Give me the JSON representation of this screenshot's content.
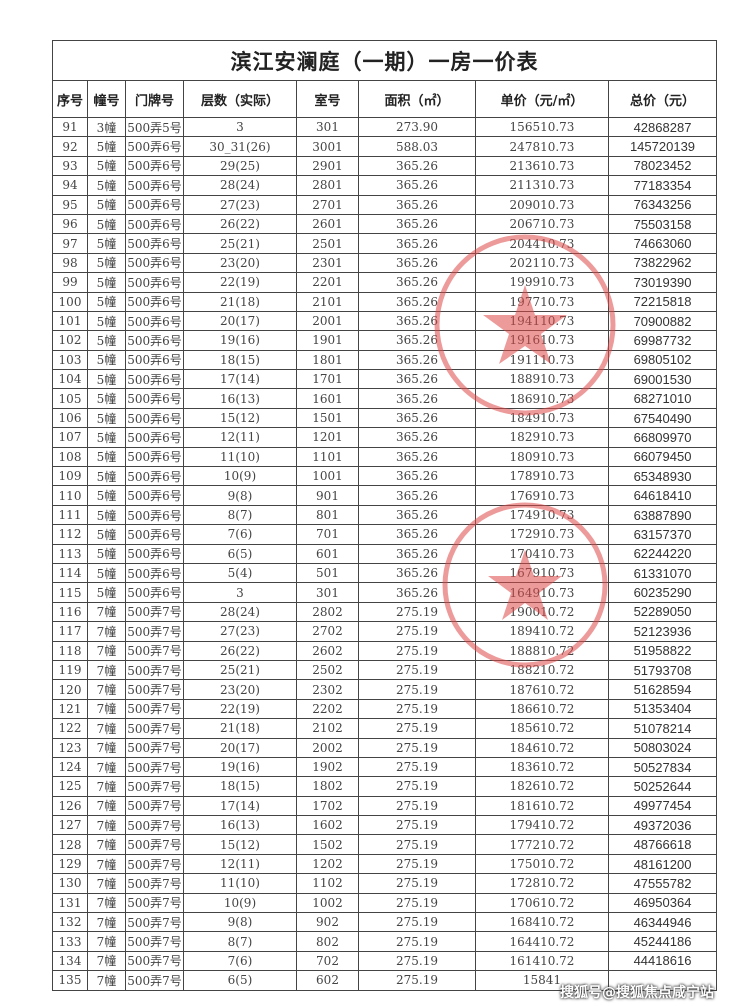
{
  "title": "滨江安澜庭（一期）一房一价表",
  "headers": [
    "序号",
    "幢号",
    "门牌号",
    "层数（实际）",
    "室号",
    "面积（㎡）",
    "单价（元/㎡）",
    "总价（元）"
  ],
  "rows": [
    [
      "91",
      "3幢",
      "500弄5号",
      "3",
      "301",
      "273.90",
      "156510.73",
      "42868287"
    ],
    [
      "92",
      "5幢",
      "500弄6号",
      "30_31(26)",
      "3001",
      "588.03",
      "247810.73",
      "145720139"
    ],
    [
      "93",
      "5幢",
      "500弄6号",
      "29(25)",
      "2901",
      "365.26",
      "213610.73",
      "78023452"
    ],
    [
      "94",
      "5幢",
      "500弄6号",
      "28(24)",
      "2801",
      "365.26",
      "211310.73",
      "77183354"
    ],
    [
      "95",
      "5幢",
      "500弄6号",
      "27(23)",
      "2701",
      "365.26",
      "209010.73",
      "76343256"
    ],
    [
      "96",
      "5幢",
      "500弄6号",
      "26(22)",
      "2601",
      "365.26",
      "206710.73",
      "75503158"
    ],
    [
      "97",
      "5幢",
      "500弄6号",
      "25(21)",
      "2501",
      "365.26",
      "204410.73",
      "74663060"
    ],
    [
      "98",
      "5幢",
      "500弄6号",
      "23(20)",
      "2301",
      "365.26",
      "202110.73",
      "73822962"
    ],
    [
      "99",
      "5幢",
      "500弄6号",
      "22(19)",
      "2201",
      "365.26",
      "199910.73",
      "73019390"
    ],
    [
      "100",
      "5幢",
      "500弄6号",
      "21(18)",
      "2101",
      "365.26",
      "197710.73",
      "72215818"
    ],
    [
      "101",
      "5幢",
      "500弄6号",
      "20(17)",
      "2001",
      "365.26",
      "194110.73",
      "70900882"
    ],
    [
      "102",
      "5幢",
      "500弄6号",
      "19(16)",
      "1901",
      "365.26",
      "191610.73",
      "69987732"
    ],
    [
      "103",
      "5幢",
      "500弄6号",
      "18(15)",
      "1801",
      "365.26",
      "191110.73",
      "69805102"
    ],
    [
      "104",
      "5幢",
      "500弄6号",
      "17(14)",
      "1701",
      "365.26",
      "188910.73",
      "69001530"
    ],
    [
      "105",
      "5幢",
      "500弄6号",
      "16(13)",
      "1601",
      "365.26",
      "186910.73",
      "68271010"
    ],
    [
      "106",
      "5幢",
      "500弄6号",
      "15(12)",
      "1501",
      "365.26",
      "184910.73",
      "67540490"
    ],
    [
      "107",
      "5幢",
      "500弄6号",
      "12(11)",
      "1201",
      "365.26",
      "182910.73",
      "66809970"
    ],
    [
      "108",
      "5幢",
      "500弄6号",
      "11(10)",
      "1101",
      "365.26",
      "180910.73",
      "66079450"
    ],
    [
      "109",
      "5幢",
      "500弄6号",
      "10(9)",
      "1001",
      "365.26",
      "178910.73",
      "65348930"
    ],
    [
      "110",
      "5幢",
      "500弄6号",
      "9(8)",
      "901",
      "365.26",
      "176910.73",
      "64618410"
    ],
    [
      "111",
      "5幢",
      "500弄6号",
      "8(7)",
      "801",
      "365.26",
      "174910.73",
      "63887890"
    ],
    [
      "112",
      "5幢",
      "500弄6号",
      "7(6)",
      "701",
      "365.26",
      "172910.73",
      "63157370"
    ],
    [
      "113",
      "5幢",
      "500弄6号",
      "6(5)",
      "601",
      "365.26",
      "170410.73",
      "62244220"
    ],
    [
      "114",
      "5幢",
      "500弄6号",
      "5(4)",
      "501",
      "365.26",
      "167910.73",
      "61331070"
    ],
    [
      "115",
      "5幢",
      "500弄6号",
      "3",
      "301",
      "365.26",
      "164910.73",
      "60235290"
    ],
    [
      "116",
      "7幢",
      "500弄7号",
      "28(24)",
      "2802",
      "275.19",
      "190010.72",
      "52289050"
    ],
    [
      "117",
      "7幢",
      "500弄7号",
      "27(23)",
      "2702",
      "275.19",
      "189410.72",
      "52123936"
    ],
    [
      "118",
      "7幢",
      "500弄7号",
      "26(22)",
      "2602",
      "275.19",
      "188810.72",
      "51958822"
    ],
    [
      "119",
      "7幢",
      "500弄7号",
      "25(21)",
      "2502",
      "275.19",
      "188210.72",
      "51793708"
    ],
    [
      "120",
      "7幢",
      "500弄7号",
      "23(20)",
      "2302",
      "275.19",
      "187610.72",
      "51628594"
    ],
    [
      "121",
      "7幢",
      "500弄7号",
      "22(19)",
      "2202",
      "275.19",
      "186610.72",
      "51353404"
    ],
    [
      "122",
      "7幢",
      "500弄7号",
      "21(18)",
      "2102",
      "275.19",
      "185610.72",
      "51078214"
    ],
    [
      "123",
      "7幢",
      "500弄7号",
      "20(17)",
      "2002",
      "275.19",
      "184610.72",
      "50803024"
    ],
    [
      "124",
      "7幢",
      "500弄7号",
      "19(16)",
      "1902",
      "275.19",
      "183610.72",
      "50527834"
    ],
    [
      "125",
      "7幢",
      "500弄7号",
      "18(15)",
      "1802",
      "275.19",
      "182610.72",
      "50252644"
    ],
    [
      "126",
      "7幢",
      "500弄7号",
      "17(14)",
      "1702",
      "275.19",
      "181610.72",
      "49977454"
    ],
    [
      "127",
      "7幢",
      "500弄7号",
      "16(13)",
      "1602",
      "275.19",
      "179410.72",
      "49372036"
    ],
    [
      "128",
      "7幢",
      "500弄7号",
      "15(12)",
      "1502",
      "275.19",
      "177210.72",
      "48766618"
    ],
    [
      "129",
      "7幢",
      "500弄7号",
      "12(11)",
      "1202",
      "275.19",
      "175010.72",
      "48161200"
    ],
    [
      "130",
      "7幢",
      "500弄7号",
      "11(10)",
      "1102",
      "275.19",
      "172810.72",
      "47555782"
    ],
    [
      "131",
      "7幢",
      "500弄7号",
      "10(9)",
      "1002",
      "275.19",
      "170610.72",
      "46950364"
    ],
    [
      "132",
      "7幢",
      "500弄7号",
      "9(8)",
      "902",
      "275.19",
      "168410.72",
      "46344946"
    ],
    [
      "133",
      "7幢",
      "500弄7号",
      "8(7)",
      "802",
      "275.19",
      "164410.72",
      "45244186"
    ],
    [
      "134",
      "7幢",
      "500弄7号",
      "7(6)",
      "702",
      "275.19",
      "161410.72",
      "44418616"
    ],
    [
      "135",
      "7幢",
      "500弄7号",
      "6(5)",
      "602",
      "275.19",
      "15841",
      ""
    ]
  ],
  "watermark": "搜狐号@搜狐焦点咸宁站",
  "colors": {
    "stamp": "#e04848",
    "grid": "#444444"
  }
}
